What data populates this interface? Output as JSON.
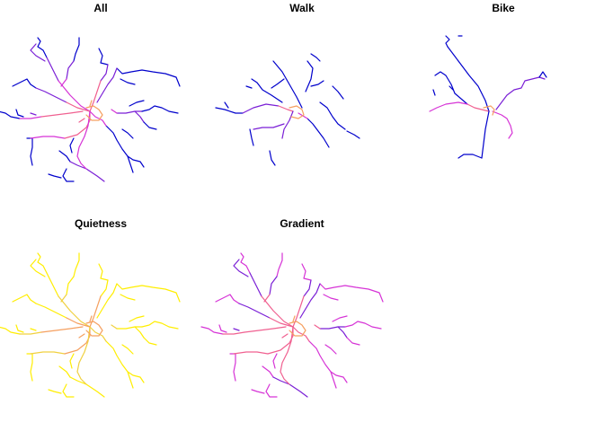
{
  "palette": {
    "blue": "#0000cc",
    "violet": "#7a1fd6",
    "magenta": "#d633d6",
    "pink": "#f06090",
    "orange": "#f5a060",
    "yellow": "#ffee00",
    "gold": "#f0d040"
  },
  "chart_data": [
    {
      "type": "line",
      "title": "All",
      "description_style": "small multiples of a route network map",
      "grid": false,
      "legend": "none"
    },
    {
      "type": "line",
      "title": "Walk",
      "grid": false,
      "legend": "none"
    },
    {
      "type": "line",
      "title": "Bike",
      "grid": false,
      "legend": "none"
    },
    {
      "type": "line",
      "title": "Quietness",
      "grid": false,
      "legend": "none"
    },
    {
      "type": "line",
      "title": "Gradient",
      "grid": false,
      "legend": "none"
    }
  ]
}
